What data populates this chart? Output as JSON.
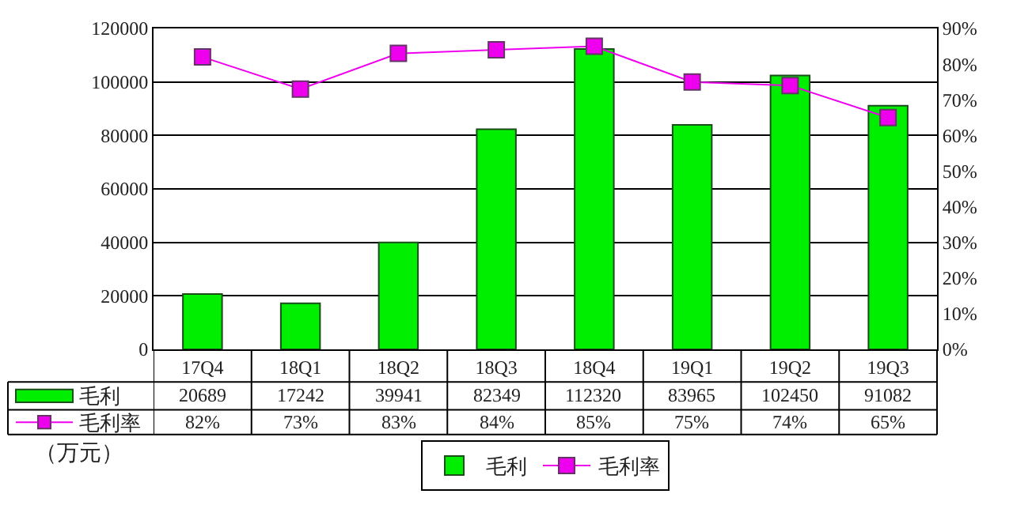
{
  "chart_data": {
    "type": "bar",
    "categories": [
      "17Q4",
      "18Q1",
      "18Q2",
      "18Q3",
      "18Q4",
      "19Q1",
      "19Q2",
      "19Q3"
    ],
    "series": [
      {
        "name": "毛利",
        "color": "#00ee00",
        "values": [
          20689,
          17242,
          39941,
          82349,
          112320,
          83965,
          102450,
          91082
        ],
        "value_labels": [
          "20689",
          "17242",
          "39941",
          "82349",
          "112320",
          "83965",
          "102450",
          "91082"
        ]
      },
      {
        "name": "毛利率",
        "type": "line",
        "axis": "y2",
        "color": "#ee00ee",
        "marker": "square",
        "values": [
          82,
          73,
          83,
          84,
          85,
          75,
          74,
          65
        ],
        "value_labels": [
          "82%",
          "73%",
          "83%",
          "84%",
          "85%",
          "75%",
          "74%",
          "65%"
        ]
      }
    ],
    "ylim": [
      0,
      120000
    ],
    "yticks": [
      0,
      20000,
      40000,
      60000,
      80000,
      100000,
      120000
    ],
    "y2lim": [
      0,
      90
    ],
    "y2ticks": [
      {
        "value": 0,
        "label": "0%"
      },
      {
        "value": 10,
        "label": "10%"
      },
      {
        "value": 20,
        "label": "20%"
      },
      {
        "value": 30,
        "label": "30%"
      },
      {
        "value": 40,
        "label": "40%"
      },
      {
        "value": 50,
        "label": "50%"
      },
      {
        "value": 60,
        "label": "60%"
      },
      {
        "value": 70,
        "label": "70%"
      },
      {
        "value": 80,
        "label": "80%"
      },
      {
        "value": 90,
        "label": "90%"
      }
    ],
    "grid": "y",
    "legend": "bottom",
    "annotations": [
      "（万元）"
    ]
  }
}
